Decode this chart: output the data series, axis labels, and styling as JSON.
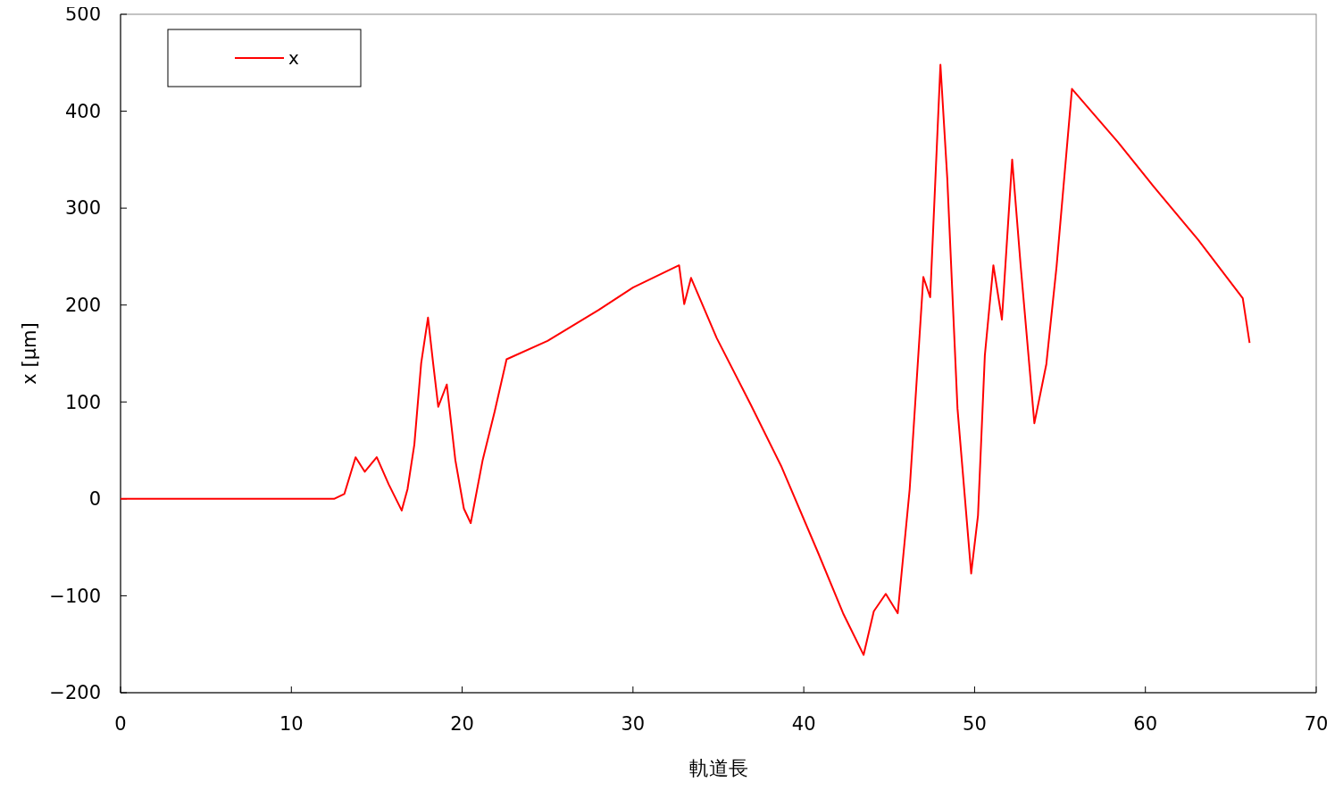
{
  "chart_data": {
    "type": "line",
    "xlabel": "軌道長",
    "ylabel": "x [μm]",
    "xlim": [
      0,
      70
    ],
    "xticks": [
      0,
      10,
      20,
      30,
      40,
      50,
      60,
      70
    ],
    "ylim": [
      -200,
      500
    ],
    "yticks": [
      -200,
      -100,
      0,
      100,
      200,
      300,
      400,
      500
    ],
    "grid": false,
    "legend": "top left",
    "line_style": "solid",
    "marker": "none",
    "series": [
      {
        "name": "x",
        "color": "#ff0000",
        "x": [
          0,
          12.5,
          13.1,
          13.76,
          14.3,
          15.0,
          15.7,
          16.46,
          16.8,
          17.2,
          17.6,
          18.0,
          18.3,
          18.6,
          19.1,
          19.6,
          20.1,
          20.5,
          21.2,
          21.9,
          22.6,
          25,
          28,
          30,
          32.7,
          33.0,
          33.4,
          34.9,
          36.9,
          38.7,
          40.8,
          42.3,
          43.5,
          44.1,
          44.8,
          45.5,
          46.2,
          47.0,
          47.4,
          48.0,
          48.4,
          49.0,
          49.8,
          50.2,
          50.6,
          51.1,
          51.6,
          52.2,
          52.7,
          53.5,
          54.2,
          54.8,
          55.7,
          58.4,
          60.5,
          63.1,
          65.7,
          66.1
        ],
        "values": [
          0,
          0,
          5,
          43,
          28,
          43,
          15,
          -12,
          10,
          56,
          140,
          187,
          140,
          95,
          118,
          40,
          -10,
          -25,
          40,
          90,
          144,
          163,
          195,
          218,
          241,
          201,
          228,
          166,
          97,
          33,
          -54,
          -118,
          -161,
          -116,
          -98,
          -118,
          10,
          229,
          208,
          448,
          331,
          93,
          -77,
          -17,
          148,
          241,
          185,
          350,
          240,
          78,
          139,
          240,
          423,
          368,
          322,
          267,
          207,
          161
        ]
      }
    ]
  }
}
